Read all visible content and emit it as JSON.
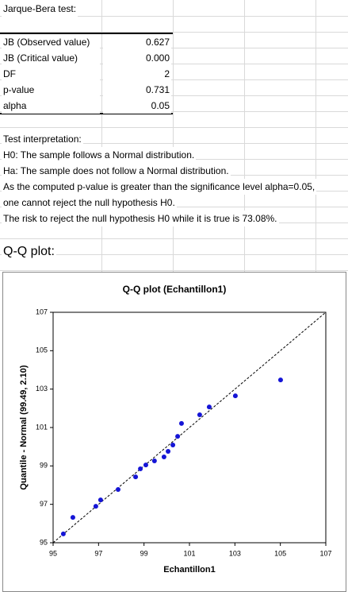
{
  "sheet": {
    "title": "Jarque-Bera test:",
    "table": {
      "rows": [
        [
          "JB (Observed value)",
          "0.627"
        ],
        [
          "JB (Critical value)",
          "0.000"
        ],
        [
          "DF",
          "2"
        ],
        [
          "p-value",
          "0.731"
        ],
        [
          "alpha",
          "0.05"
        ]
      ]
    },
    "interpretation": [
      "Test interpretation:",
      "H0: The sample follows a Normal distribution.",
      "Ha: The sample does not follow a Normal distribution.",
      "As the computed p-value is greater than the significance level alpha=0.05,",
      "one cannot reject the null hypothesis H0.",
      "The risk to reject the null hypothesis H0 while it is true is 73.08%."
    ],
    "qq_label": "Q-Q plot:"
  },
  "chart_data": {
    "type": "scatter",
    "title": "Q-Q plot (Echantillon1)",
    "x_label": "Echantillon1",
    "y_label": "Quantile - Normal (99.49, 2.10)",
    "color": "#1515d6",
    "x": [
      95.45,
      95.87,
      96.88,
      97.09,
      97.86,
      98.63,
      98.84,
      99.08,
      99.46,
      99.88,
      100.06,
      100.27,
      100.48,
      100.65,
      101.45,
      101.87,
      103.02,
      105.01
    ],
    "values": [
      95.46,
      96.32,
      96.9,
      97.23,
      97.77,
      98.43,
      98.85,
      99.05,
      99.26,
      99.47,
      99.76,
      100.09,
      100.54,
      101.21,
      101.66,
      102.07,
      102.65,
      103.48
    ],
    "xlim": [
      95,
      107
    ],
    "ylim": [
      95,
      107
    ],
    "xticks": [
      95,
      97,
      99,
      101,
      103,
      105,
      107
    ],
    "yticks": [
      95,
      97,
      99,
      101,
      103,
      105,
      107
    ]
  }
}
